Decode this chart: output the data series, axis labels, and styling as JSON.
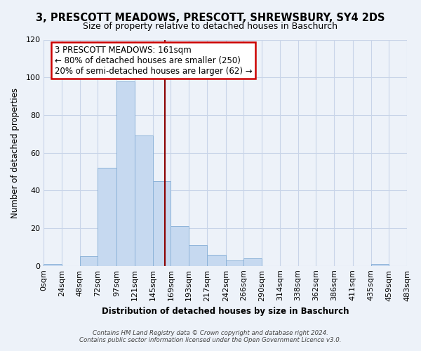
{
  "title": "3, PRESCOTT MEADOWS, PRESCOTT, SHREWSBURY, SY4 2DS",
  "subtitle": "Size of property relative to detached houses in Baschurch",
  "xlabel": "Distribution of detached houses by size in Baschurch",
  "ylabel": "Number of detached properties",
  "bar_edges": [
    0,
    24,
    48,
    72,
    97,
    121,
    145,
    169,
    193,
    217,
    242,
    266,
    290,
    314,
    338,
    362,
    386,
    411,
    435,
    459,
    483
  ],
  "bar_heights": [
    1,
    0,
    5,
    52,
    98,
    69,
    45,
    21,
    11,
    6,
    3,
    4,
    0,
    0,
    0,
    0,
    0,
    0,
    1,
    0
  ],
  "bar_color": "#c6d9f0",
  "bar_edge_color": "#8db3d9",
  "vline_x": 161,
  "vline_color": "#8b0000",
  "ylim": [
    0,
    120
  ],
  "annotation_line1": "3 PRESCOTT MEADOWS: 161sqm",
  "annotation_line2": "← 80% of detached houses are smaller (250)",
  "annotation_line3": "20% of semi-detached houses are larger (62) →",
  "annotation_box_color": "white",
  "annotation_box_edge": "#cc0000",
  "tick_labels": [
    "0sqm",
    "24sqm",
    "48sqm",
    "72sqm",
    "97sqm",
    "121sqm",
    "145sqm",
    "169sqm",
    "193sqm",
    "217sqm",
    "242sqm",
    "266sqm",
    "290sqm",
    "314sqm",
    "338sqm",
    "362sqm",
    "386sqm",
    "411sqm",
    "435sqm",
    "459sqm",
    "483sqm"
  ],
  "footer_text": "Contains HM Land Registry data © Crown copyright and database right 2024.\nContains public sector information licensed under the Open Government Licence v3.0.",
  "background_color": "#edf2f9",
  "plot_bg_color": "#edf2f9",
  "grid_color": "#c8d4e8"
}
